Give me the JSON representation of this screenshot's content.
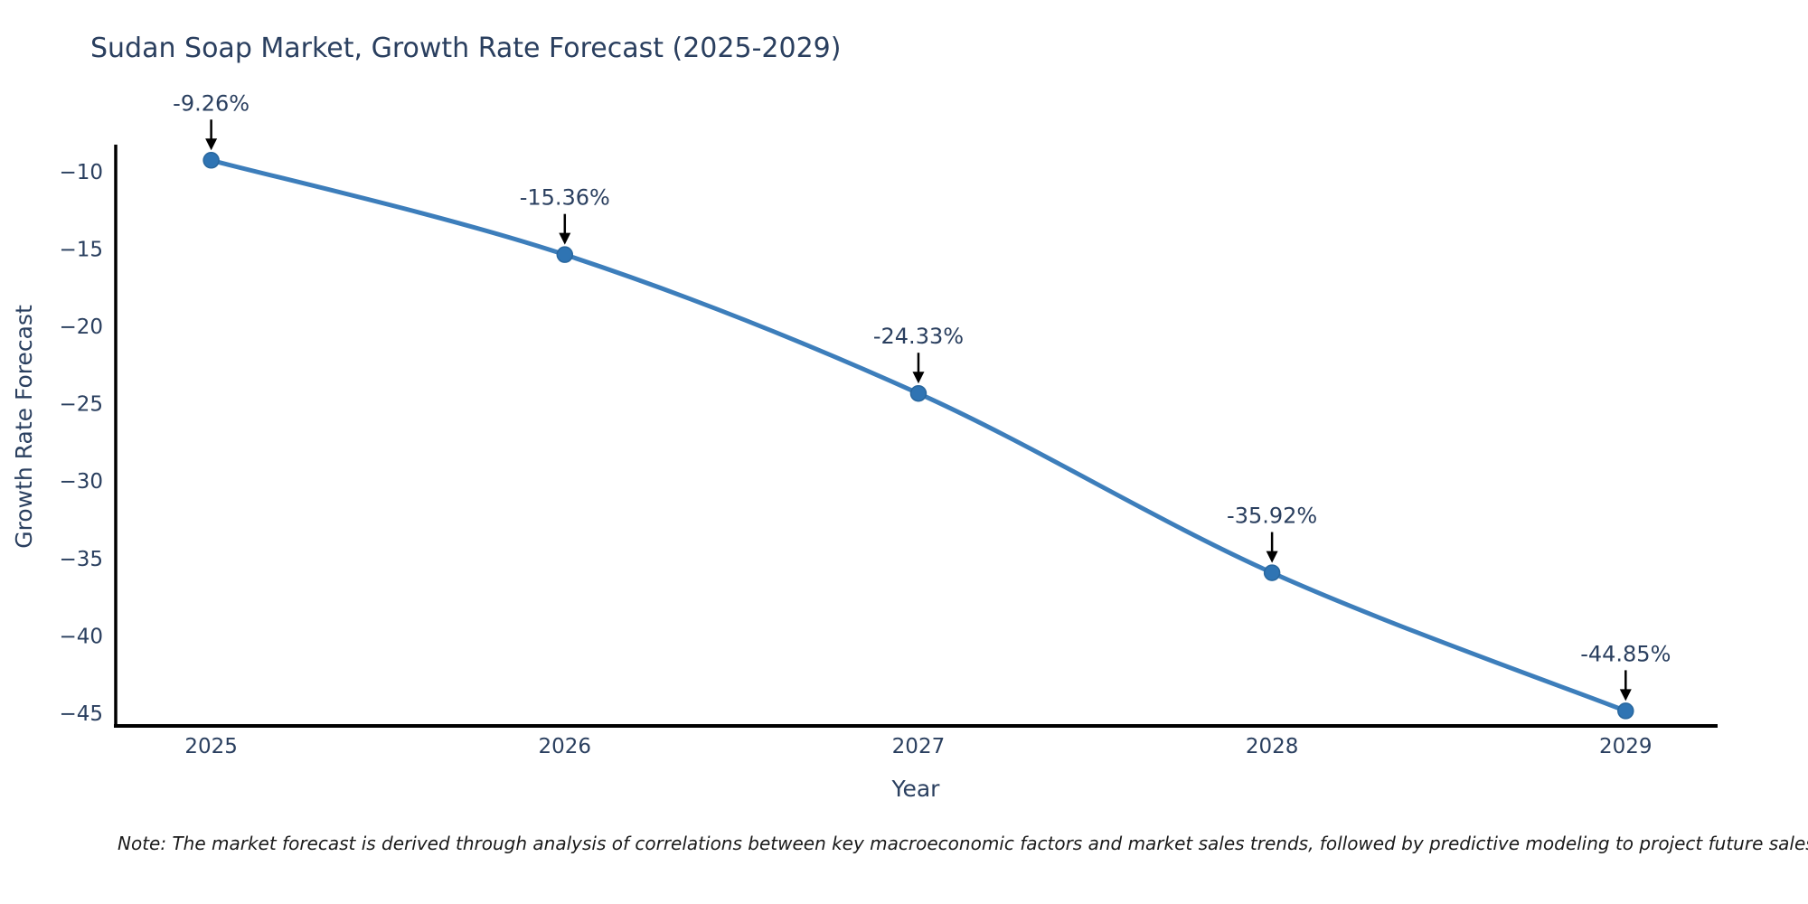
{
  "page": {
    "background": "#ffffff"
  },
  "chart_data": {
    "type": "line",
    "title": "Sudan Soap Market, Growth Rate Forecast (2025-2029)",
    "xlabel": "Year",
    "ylabel": "Growth Rate Forecast",
    "x": [
      2025,
      2026,
      2027,
      2028,
      2029
    ],
    "series": [
      {
        "name": "Growth Rate Forecast",
        "values": [
          -9.26,
          -15.36,
          -24.33,
          -35.92,
          -44.85
        ]
      }
    ],
    "point_labels": [
      "-9.26%",
      "-15.36%",
      "-24.33%",
      "-35.92%",
      "-44.85%"
    ],
    "x_tick_labels": [
      "2025",
      "2026",
      "2027",
      "2028",
      "2029"
    ],
    "y_tick_values": [
      -10,
      -15,
      -20,
      -25,
      -30,
      -35,
      -40,
      -45
    ],
    "y_tick_labels": [
      "−10",
      "−15",
      "−20",
      "−25",
      "−30",
      "−35",
      "−40",
      "−45"
    ],
    "xlim": [
      2024.73,
      2029.26
    ],
    "ylim": [
      -45.82,
      -8.25
    ],
    "grid": false,
    "legend": false,
    "curve": "spline",
    "colors": {
      "line": "#3d7ebb",
      "marker_fill": "#2f74b3",
      "marker_edge": "#29679e",
      "axis_line": "#000000",
      "tick_text": "#2a3f5f",
      "annotation_text": "#2a3f5f",
      "annotation_arrow": "#000000"
    }
  },
  "note": "Note: The market forecast is derived through analysis of correlations between key macroeconomic factors and market sales trends, followed by predictive modeling to project future sales."
}
